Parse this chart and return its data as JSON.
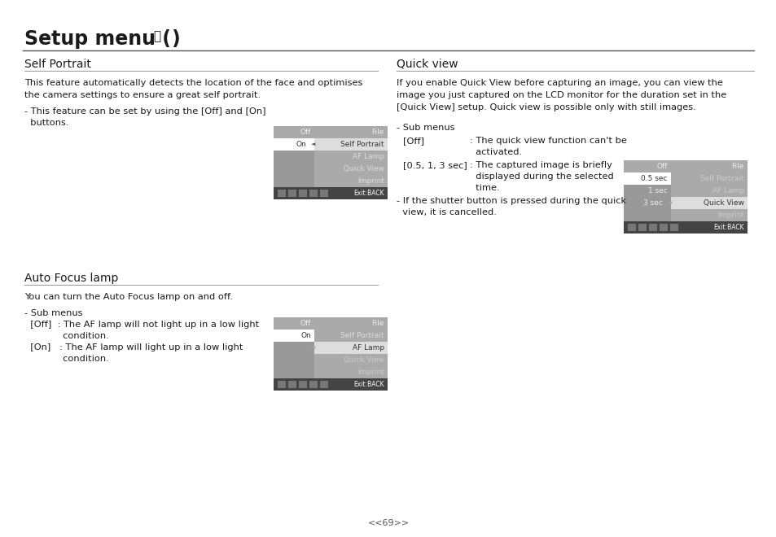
{
  "bg_color": "#ffffff",
  "text_color": "#1a1a1a",
  "page_number": "<<69>>",
  "title_text1": "Setup menu (  ",
  "title_text2": "  )",
  "title_icon": "Ⓜ",
  "left_section_title": "Self Portrait",
  "left_body1": "This feature automatically detects the location of the face and optimises",
  "left_body2": "the camera settings to ensure a great self portrait.",
  "left_note1": "- This feature can be set by using the [Off] and [On]",
  "left_note2": "  buttons.",
  "auto_focus_title": "Auto Focus lamp",
  "auto_focus_body": "You can turn the Auto Focus lamp on and off.",
  "auto_focus_sub": "- Sub menus",
  "auto_off1": "  [Off]  : The AF lamp will not light up in a low light",
  "auto_off2": "             condition.",
  "auto_on1": "  [On]   : The AF lamp will light up in a low light",
  "auto_on2": "             condition.",
  "right_section_title": "Quick view",
  "right_body1": "If you enable Quick View before capturing an image, you can view the",
  "right_body2": "image you just captured on the LCD monitor for the duration set in the",
  "right_body3": "[Quick View] setup. Quick view is possible only with still images.",
  "right_sub": "- Sub menus",
  "right_off1": "  [Off]               : The quick view function can't be",
  "right_off2": "                           activated.",
  "right_sec1": "  [0.5, 1, 3 sec]  : The captured image is briefly",
  "right_sec2": "                           displayed during the selected",
  "right_sec3": "                           time.",
  "right_note1": "- If the shutter button is pressed during the quick",
  "right_note2": "  view, it is cancelled.",
  "gray_dark": "#898989",
  "gray_medium": "#aaaaaa",
  "gray_light": "#c8c8c8",
  "white_ish": "#f5f5f5",
  "black_bar": "#3a3a3a",
  "selected_text": "#222222",
  "unselected_text": "#dddddd",
  "right_selected_text": "#1a1a1a"
}
